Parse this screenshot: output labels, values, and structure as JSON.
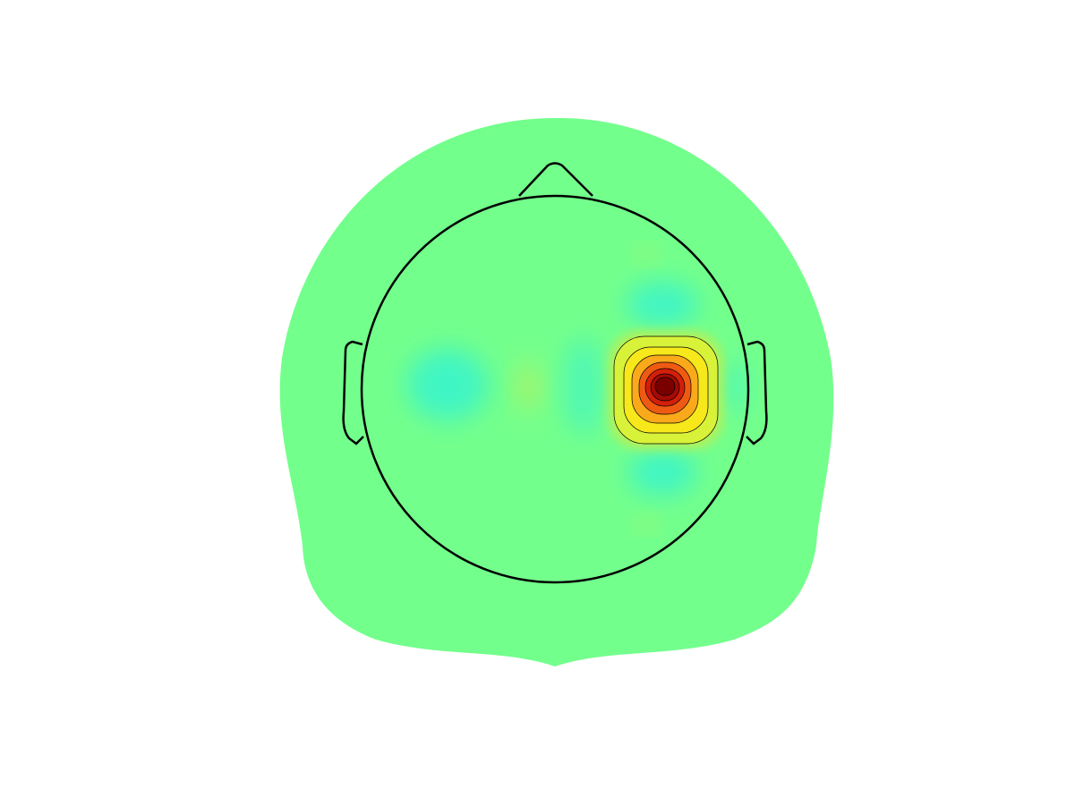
{
  "chart_data": {
    "type": "topoplot"
  }
}
